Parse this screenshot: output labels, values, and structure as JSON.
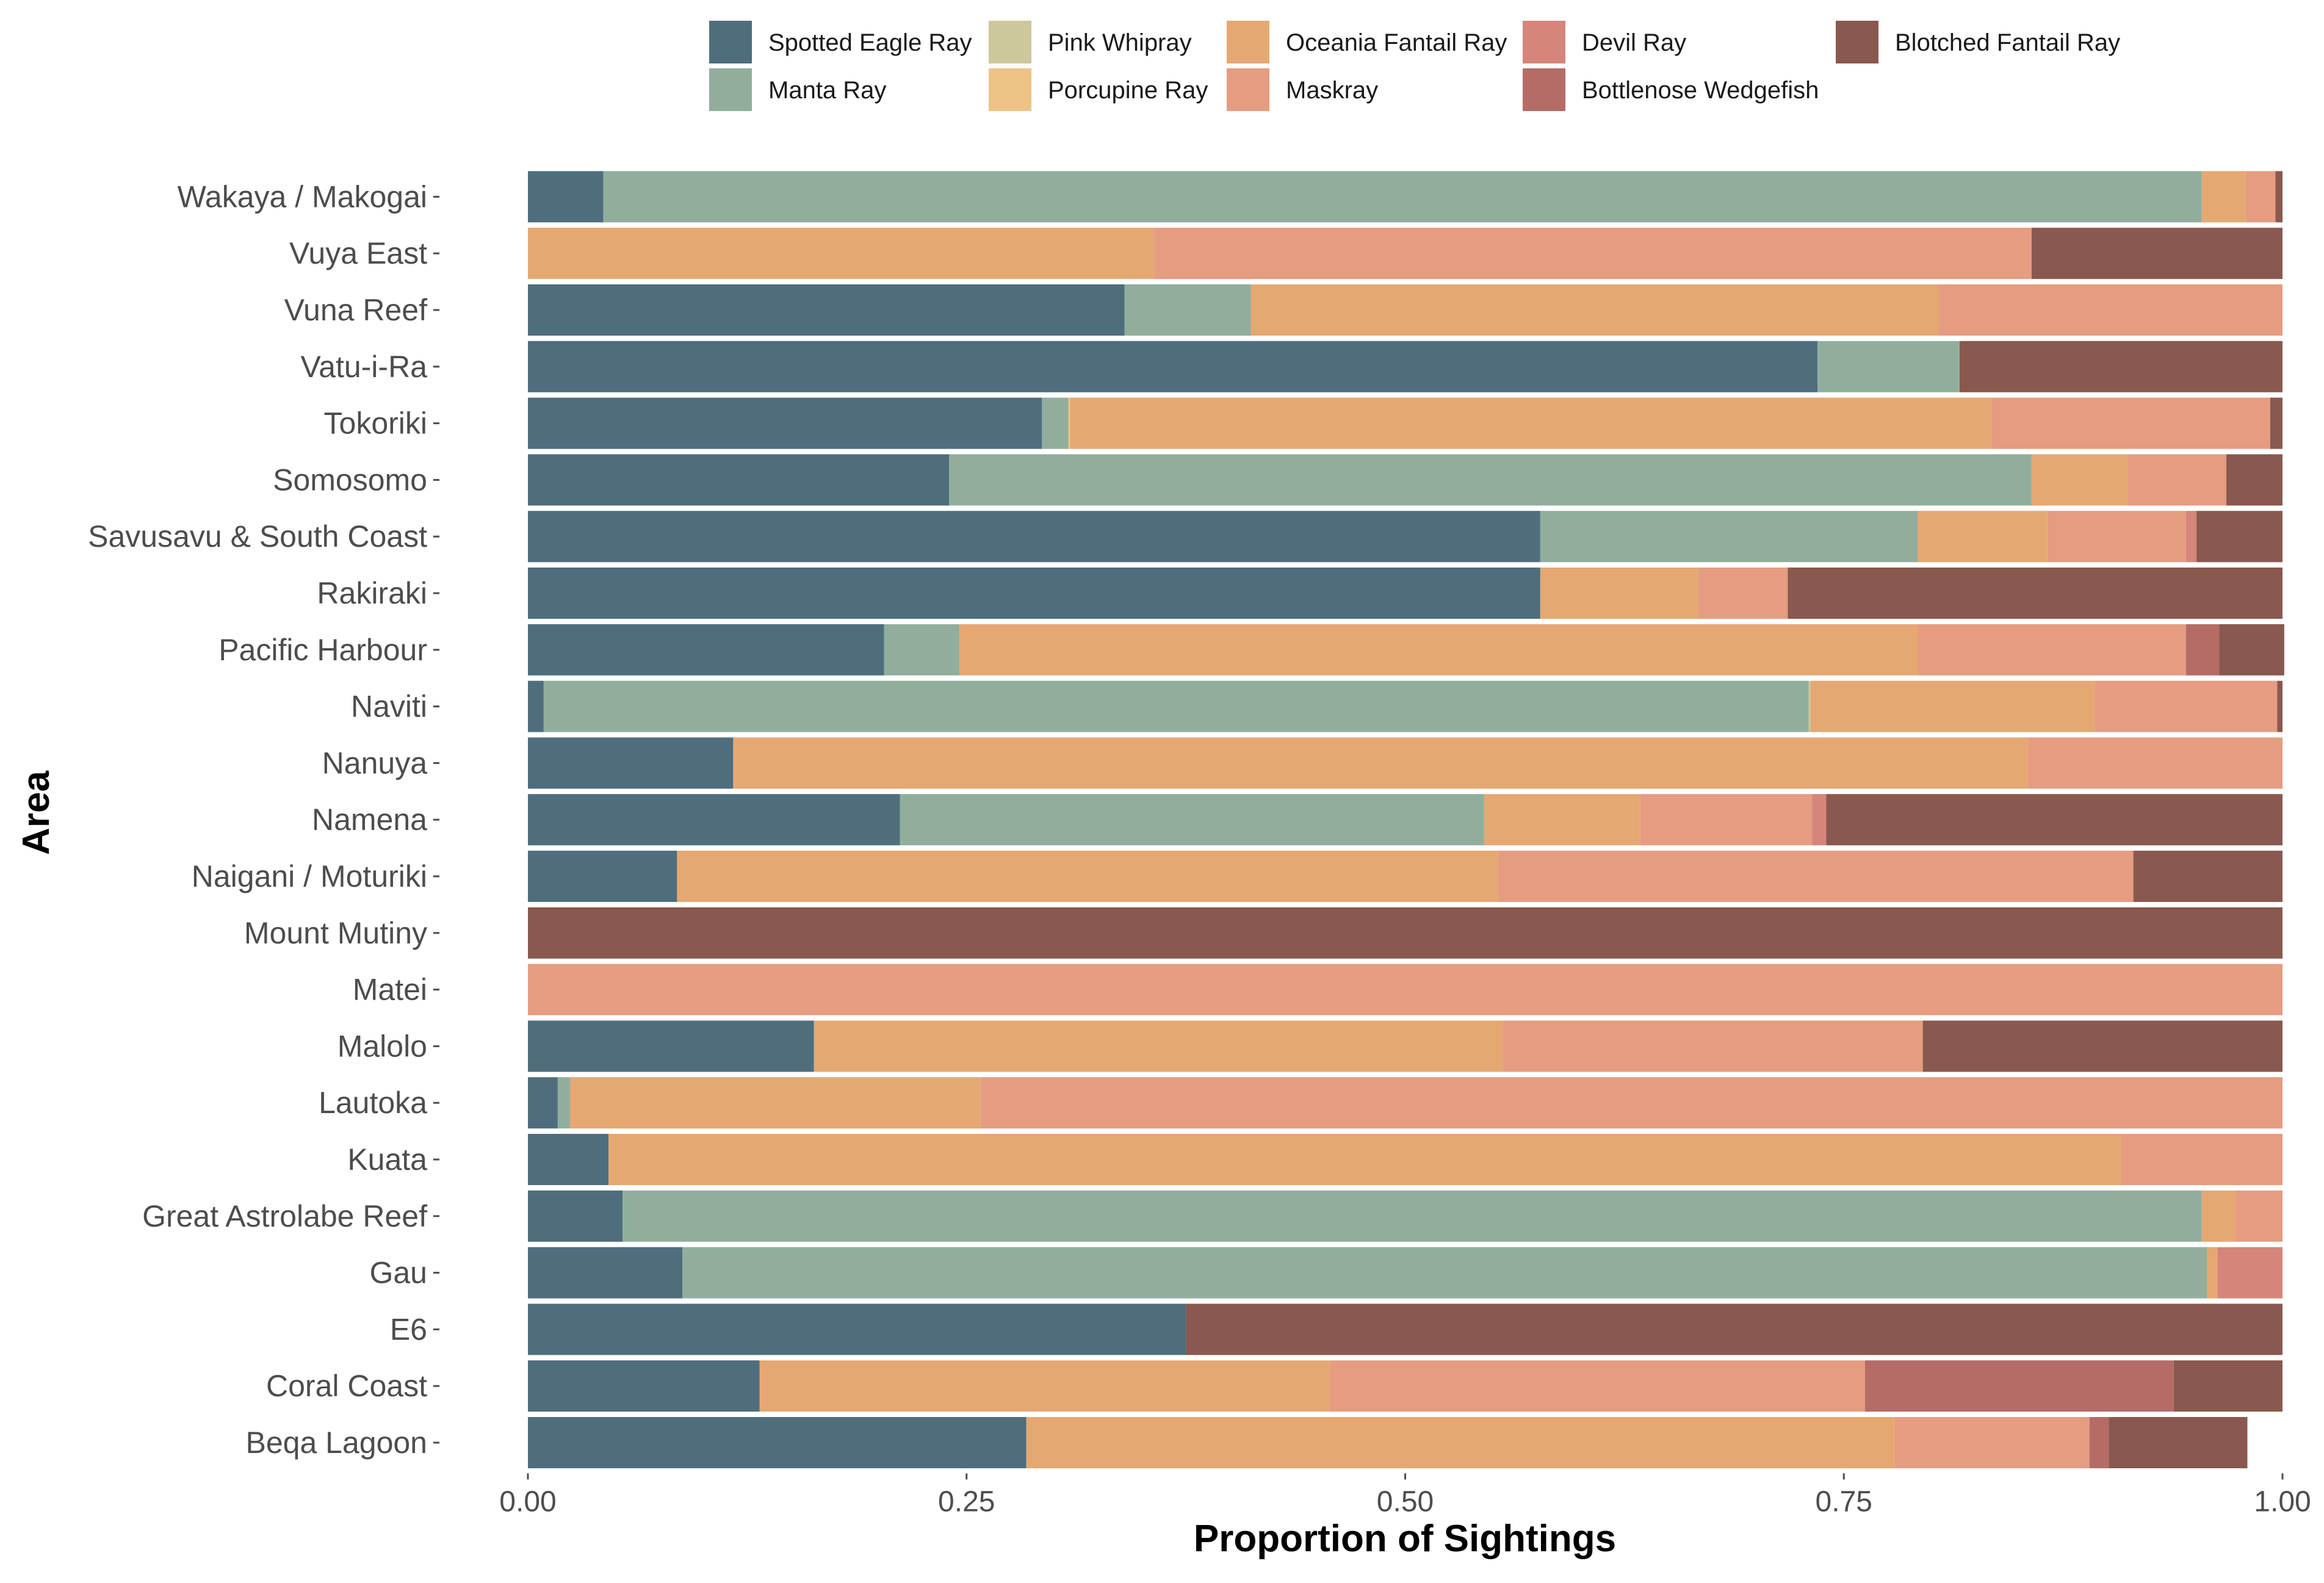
{
  "chart_data": {
    "type": "bar",
    "orientation": "horizontal",
    "stacked": "proportion",
    "title": "",
    "xlabel": "Proportion of Sightings",
    "ylabel": "Area",
    "xlim": [
      0,
      1
    ],
    "xticks": [
      0,
      0.25,
      0.5,
      0.75,
      1
    ],
    "xtick_labels": [
      "0.00",
      "0.25",
      "0.50",
      "0.75",
      "1.00"
    ],
    "grid": false,
    "legend_position": "top",
    "categories": [
      "Wakaya / Makogai",
      "Vuya East",
      "Vuna Reef",
      "Vatu-i-Ra",
      "Tokoriki",
      "Somosomo",
      "Savusavu & South Coast",
      "Rakiraki",
      "Pacific Harbour",
      "Naviti",
      "Nanuya",
      "Namena",
      "Naigani / Moturiki",
      "Mount Mutiny",
      "Matei",
      "Malolo",
      "Lautoka",
      "Kuata",
      "Great Astrolabe Reef",
      "Gau",
      "E6",
      "Coral Coast",
      "Beqa Lagoon"
    ],
    "series": [
      {
        "name": "Spotted Eagle Ray",
        "color": "#4e6e7e",
        "values": [
          0.043,
          0,
          0.34,
          0.735,
          0.293,
          0.24,
          0.577,
          0.577,
          0.203,
          0.009,
          0.117,
          0.212,
          0.085,
          0,
          0,
          0.163,
          0.017,
          0.046,
          0.054,
          0.088,
          0.375,
          0.132,
          0.284
        ]
      },
      {
        "name": "Manta Ray",
        "color": "#91ae9d",
        "values": [
          0.911,
          0,
          0.072,
          0.081,
          0.015,
          0.617,
          0.215,
          0,
          0.043,
          0.721,
          0,
          0.333,
          0,
          0,
          0,
          0,
          0.007,
          0,
          0.9,
          0.869,
          0,
          0,
          0
        ]
      },
      {
        "name": "Pink Whipray",
        "color": "#ccc89c",
        "values": [
          0,
          0,
          0,
          0,
          0,
          0,
          0,
          0,
          0,
          0.001,
          0,
          0,
          0,
          0,
          0,
          0,
          0,
          0,
          0,
          0,
          0,
          0,
          0
        ]
      },
      {
        "name": "Porcupine Ray",
        "color": "#edc486",
        "values": [
          0,
          0,
          0,
          0,
          0.001,
          0,
          0,
          0,
          0,
          0,
          0,
          0,
          0,
          0,
          0,
          0,
          0,
          0,
          0,
          0,
          0,
          0,
          0
        ]
      },
      {
        "name": "Oceania Fantail Ray",
        "color": "#e5a872",
        "values": [
          0.025,
          0.357,
          0.392,
          0,
          0.525,
          0.055,
          0.074,
          0.09,
          0.546,
          0.162,
          0.738,
          0.089,
          0.468,
          0,
          0,
          0.393,
          0.234,
          0.862,
          0.019,
          0.006,
          0,
          0.325,
          0.495
        ]
      },
      {
        "name": "Maskray",
        "color": "#e59c80",
        "values": [
          0.017,
          0.5,
          0.196,
          0,
          0.159,
          0.056,
          0.079,
          0.051,
          0.153,
          0.104,
          0.145,
          0.098,
          0.362,
          0,
          1,
          0.239,
          0.742,
          0.092,
          0.027,
          0,
          0,
          0.305,
          0.111
        ]
      },
      {
        "name": "Devil Ray",
        "color": "#d5857a",
        "values": [
          0,
          0,
          0,
          0,
          0,
          0,
          0.006,
          0,
          0,
          0,
          0,
          0.008,
          0,
          0,
          0,
          0,
          0,
          0,
          0,
          0.037,
          0,
          0,
          0
        ]
      },
      {
        "name": "Bottlenose Wedgefish",
        "color": "#b56c66",
        "values": [
          0,
          0,
          0,
          0,
          0,
          0,
          0,
          0,
          0.019,
          0,
          0,
          0,
          0,
          0,
          0,
          0,
          0,
          0,
          0,
          0,
          0,
          0.176,
          0.011
        ]
      },
      {
        "name": "Blotched Fantail Ray",
        "color": "#89584e",
        "values": [
          0.004,
          0.143,
          0,
          0.184,
          0.007,
          0.032,
          0.049,
          0.282,
          0.037,
          0.003,
          0,
          0.26,
          0.085,
          1,
          0,
          0.205,
          0,
          0,
          0,
          0,
          0.625,
          0.062,
          0.079
        ]
      }
    ]
  }
}
